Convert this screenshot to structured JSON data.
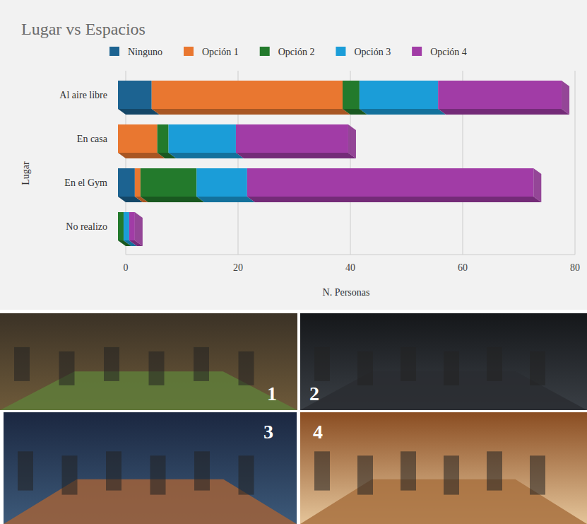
{
  "chart_data": {
    "type": "bar",
    "title": "Lugar vs Espacios",
    "x_label": "N. Personas",
    "y_label": "Lugar",
    "orientation": "horizontal",
    "stacked": true,
    "grid": true,
    "legend": "top",
    "categories": [
      "Al aire libre",
      "En casa",
      "En el Gym",
      "No realizo"
    ],
    "series": [
      {
        "name": "Ninguno",
        "color": "#1c6391",
        "values": [
          6,
          0,
          3,
          0
        ]
      },
      {
        "name": "Opción 1",
        "color": "#e97730",
        "values": [
          34,
          7,
          1,
          0
        ]
      },
      {
        "name": "Opción 2",
        "color": "#237a2c",
        "values": [
          3,
          2,
          10,
          1
        ]
      },
      {
        "name": "Opción 3",
        "color": "#1b9dd8",
        "values": [
          14,
          12,
          9,
          1
        ]
      },
      {
        "name": "Opción 4",
        "color": "#a13ca6",
        "values": [
          22,
          20,
          51,
          1
        ]
      }
    ],
    "xlim": [
      0,
      80
    ],
    "xticks": [
      0,
      20,
      40,
      60,
      80
    ]
  },
  "images": [
    {
      "label": "1"
    },
    {
      "label": "2"
    },
    {
      "label": "3"
    },
    {
      "label": "4"
    }
  ]
}
